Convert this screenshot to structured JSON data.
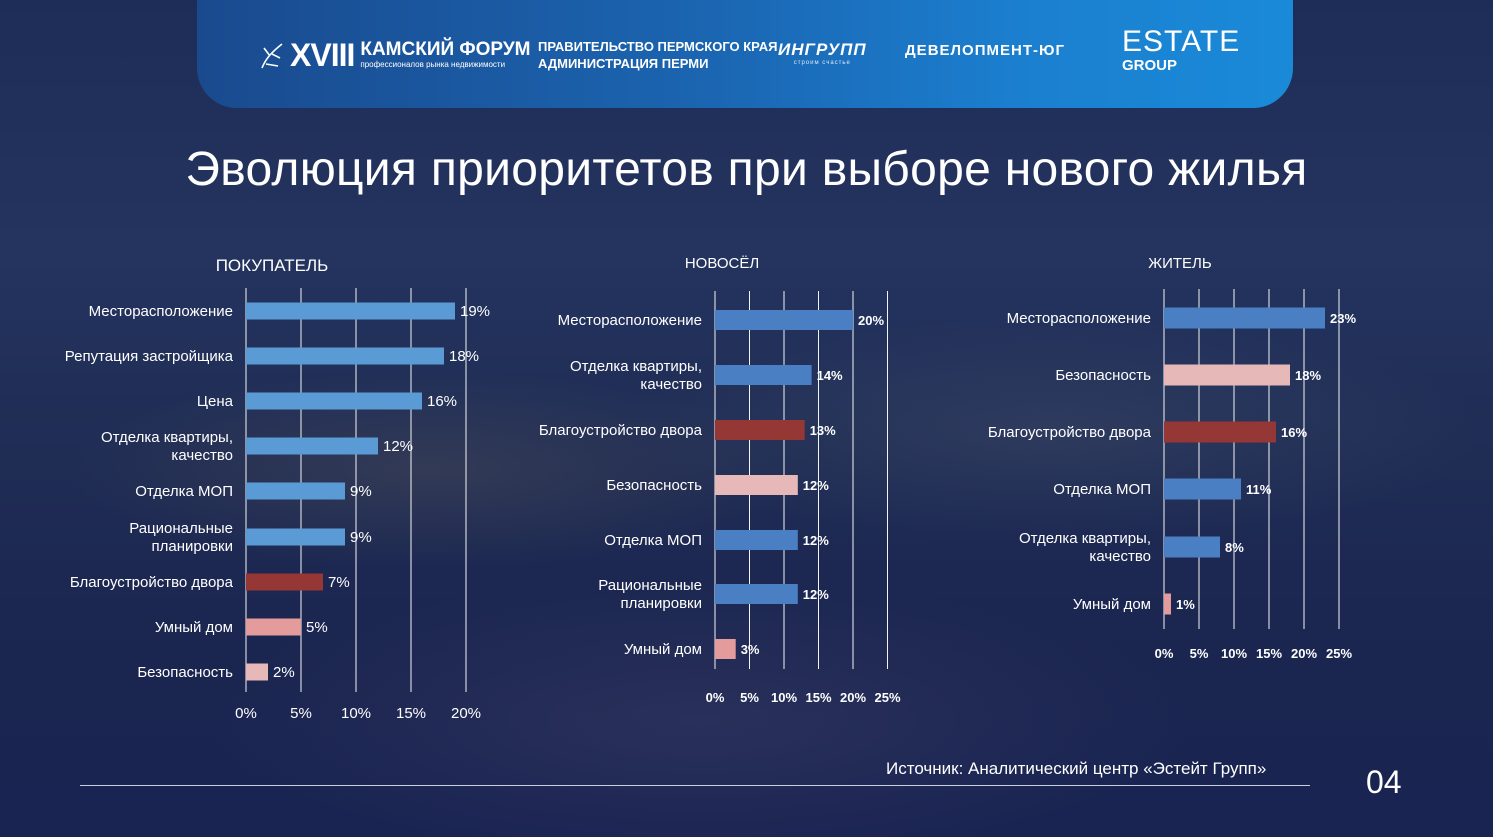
{
  "header": {
    "forum_roman": "XVIII",
    "forum_name": "КАМСКИЙ ФОРУМ",
    "forum_sub": "профессионалов рынка недвижимости",
    "gov_line1": "ПРАВИТЕЛЬСТВО ПЕРМСКОГО КРАЯ",
    "gov_line2": "АДМИНИСТРАЦИЯ ПЕРМИ",
    "ingrupp_name": "ИНГРУПП",
    "ingrupp_sub": "строим счастье",
    "developer_name": "ДЕВЕЛОПМЕНТ-ЮГ",
    "estate_name": "ESTATE",
    "estate_sub": "GROUP"
  },
  "title": "Эволюция приоритетов при выборе нового жилья",
  "colors": {
    "bar_default_left": "#5b9bd5",
    "bar_default": "#4a7fc4",
    "bar_yard": "#953735",
    "bar_smart_home": "#e39b9b",
    "bar_security": "#e6b9b8"
  },
  "chart_data": [
    {
      "type": "bar",
      "orientation": "horizontal",
      "title": "ПОКУПАТЕЛЬ",
      "categories": [
        "Месторасположение",
        "Репутация застройщика",
        "Цена",
        "Отделка квартиры, качество",
        "Отделка МОП",
        "Рациональные планировки",
        "Благоустройство двора",
        "Умный дом",
        "Безопасность"
      ],
      "values": [
        19,
        18,
        16,
        12,
        9,
        9,
        7,
        5,
        2
      ],
      "value_labels": [
        "19%",
        "18%",
        "16%",
        "12%",
        "9%",
        "9%",
        "7%",
        "5%",
        "2%"
      ],
      "xlim": [
        0,
        20
      ],
      "xticks": [
        "0%",
        "5%",
        "10%",
        "15%",
        "20%"
      ],
      "grid": true
    },
    {
      "type": "bar",
      "orientation": "horizontal",
      "title": "НОВОСЁЛ",
      "categories": [
        "Месторасположение",
        "Отделка квартиры, качество",
        "Благоустройство двора",
        "Безопасность",
        "Отделка МОП",
        "Рациональные планировки",
        "Умный дом"
      ],
      "values": [
        20,
        14,
        13,
        12,
        12,
        12,
        3
      ],
      "value_labels": [
        "20%",
        "14%",
        "13%",
        "12%",
        "12%",
        "12%",
        "3%"
      ],
      "xlim": [
        0,
        25
      ],
      "xticks": [
        "0%",
        "5%",
        "10%",
        "15%",
        "20%",
        "25%"
      ],
      "grid": true
    },
    {
      "type": "bar",
      "orientation": "horizontal",
      "title": "ЖИТЕЛЬ",
      "categories": [
        "Месторасположение",
        "Безопасность",
        "Благоустройство двора",
        "Отделка МОП",
        "Отделка квартиры, качество",
        "Умный дом"
      ],
      "values": [
        23,
        18,
        16,
        11,
        8,
        1
      ],
      "value_labels": [
        "23%",
        "18%",
        "16%",
        "11%",
        "8%",
        "1%"
      ],
      "xlim": [
        0,
        25
      ],
      "xticks": [
        "0%",
        "5%",
        "10%",
        "15%",
        "20%",
        "25%"
      ],
      "grid": true
    }
  ],
  "footer": {
    "source": "Источник: Аналитический центр «Эстейт Групп»",
    "page_number": "04"
  }
}
